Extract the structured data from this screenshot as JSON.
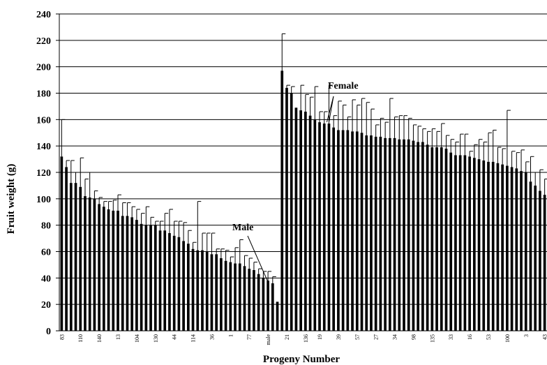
{
  "chart_data": {
    "type": "bar",
    "title": "",
    "xlabel": "Progeny Number",
    "ylabel": "Fruit weight (g)",
    "ylim": [
      0,
      240
    ],
    "yticks": [
      0,
      20,
      40,
      60,
      80,
      100,
      120,
      140,
      160,
      180,
      200,
      220,
      240
    ],
    "grid": true,
    "legend": "none",
    "bar_color": "#000000",
    "x_tick_labels": [
      "83",
      "110",
      "140",
      "13",
      "104",
      "130",
      "44",
      "114",
      "36",
      "1",
      "77",
      "male",
      "21",
      "136",
      "19",
      "39",
      "57",
      "27",
      "34",
      "98",
      "135",
      "33",
      "16",
      "53",
      "100",
      "3",
      "43"
    ],
    "series": [
      {
        "values": [
          132,
          124,
          112,
          112,
          109,
          102,
          101,
          100,
          96,
          94,
          92,
          91,
          91,
          87,
          87,
          86,
          84,
          81,
          80,
          80,
          80,
          76,
          76,
          74,
          72,
          71,
          68,
          66,
          62,
          61,
          61,
          60,
          58,
          58,
          55,
          53,
          52,
          51,
          51,
          49,
          47,
          46,
          43,
          40,
          38,
          36,
          22,
          197,
          184,
          180,
          169,
          167,
          166,
          163,
          160,
          158,
          157,
          157,
          154,
          152,
          152,
          152,
          151,
          151,
          150,
          148,
          148,
          147,
          147,
          146,
          146,
          146,
          145,
          145,
          145,
          144,
          143,
          143,
          141,
          139,
          139,
          139,
          138,
          135,
          133,
          133,
          133,
          132,
          131,
          130,
          129,
          128,
          128,
          127,
          126,
          125,
          124,
          123,
          121,
          120,
          113,
          110,
          106,
          103
        ],
        "errors": [
          28,
          5,
          17,
          8,
          22,
          13,
          19,
          6,
          5,
          4,
          6,
          8,
          12,
          10,
          10,
          8,
          8,
          8,
          14,
          6,
          3,
          7,
          13,
          18,
          11,
          12,
          14,
          10,
          5,
          37,
          13,
          14,
          16,
          4,
          7,
          8,
          4,
          12,
          18,
          8,
          8,
          6,
          4,
          5,
          7,
          5,
          0,
          28,
          2,
          5,
          0,
          19,
          13,
          14,
          25,
          8,
          9,
          29,
          9,
          22,
          19,
          10,
          24,
          20,
          26,
          25,
          20,
          9,
          14,
          12,
          30,
          16,
          18,
          18,
          16,
          12,
          12,
          10,
          10,
          14,
          12,
          18,
          10,
          10,
          10,
          16,
          16,
          4,
          10,
          15,
          14,
          22,
          24,
          12,
          12,
          42,
          12,
          12,
          16,
          8,
          19,
          10,
          16,
          12
        ]
      }
    ],
    "annotations": [
      {
        "text": "Female",
        "points_to_bar": 57
      },
      {
        "text": "Male",
        "points_to_bar": 44
      }
    ]
  }
}
